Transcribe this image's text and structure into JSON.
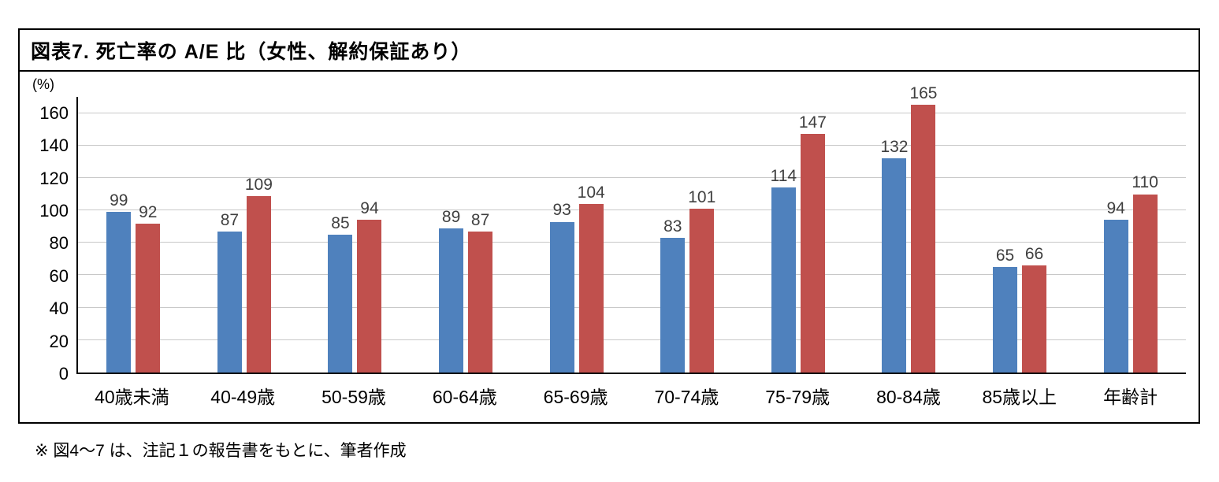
{
  "chart": {
    "title": "図表7. 死亡率の A/E 比（女性、解約保証あり）",
    "unit": "(%)"
  },
  "footnote": "※ 図4～7 は、注記１の報告書をもとに、筆者作成",
  "chart_data": {
    "type": "bar",
    "title": "図表7. 死亡率の A/E 比（女性、解約保証あり）",
    "ylabel": "(%)",
    "xlabel": "",
    "categories": [
      "40歳未満",
      "40-49歳",
      "50-59歳",
      "60-64歳",
      "65-69歳",
      "70-74歳",
      "75-79歳",
      "80-84歳",
      "85歳以上",
      "年齢計"
    ],
    "series": [
      {
        "name": "series-blue",
        "color": "#4f81bd",
        "values": [
          99,
          87,
          85,
          89,
          93,
          83,
          114,
          132,
          65,
          94
        ]
      },
      {
        "name": "series-red",
        "color": "#c0504d",
        "values": [
          92,
          109,
          94,
          87,
          104,
          101,
          147,
          165,
          66,
          110
        ]
      }
    ],
    "ylim": [
      0,
      170
    ],
    "yticks": [
      0,
      20,
      40,
      60,
      80,
      100,
      120,
      140,
      160
    ],
    "grid": true,
    "legend": "none"
  }
}
